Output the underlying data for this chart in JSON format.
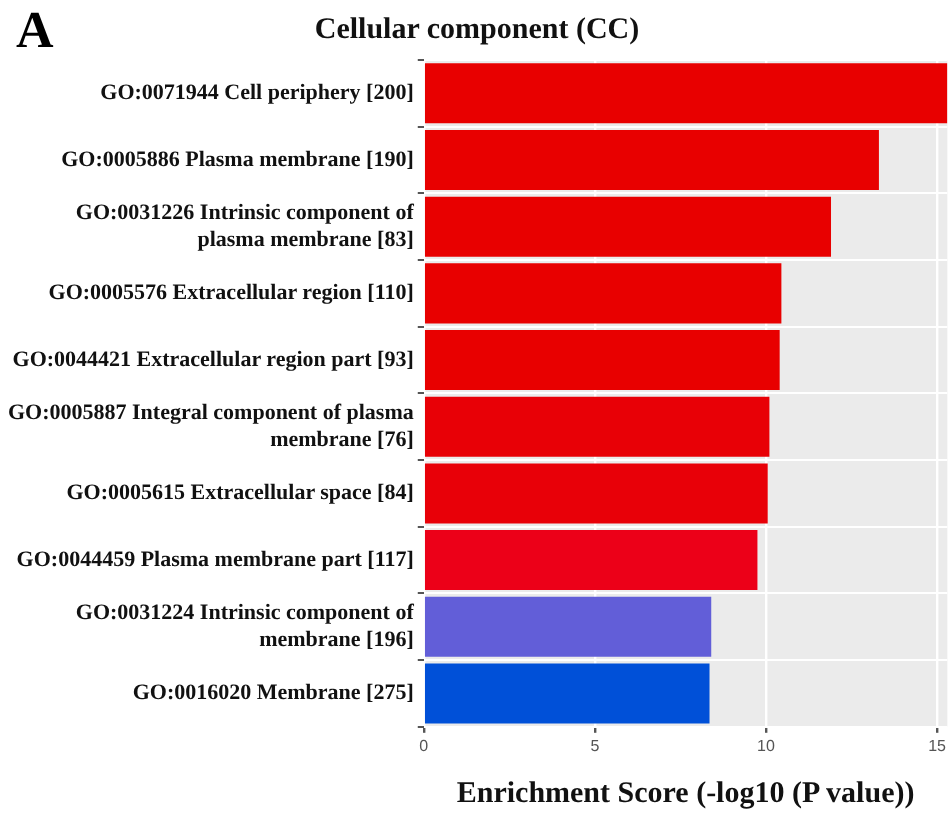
{
  "chart_data": {
    "type": "bar",
    "orientation": "horizontal",
    "title": "Cellular component (CC)",
    "xlabel": "Enrichment Score (-log10 (P value))",
    "annotations": [
      "A"
    ],
    "categories": [
      "GO:0071944 Cell periphery [200]",
      "GO:0005886 Plasma membrane [190]",
      "GO:0031226 Intrinsic component of plasma membrane [83]",
      "GO:0005576 Extracellular region [110]",
      "GO:0044421 Extracellular region part [93]",
      "GO:0005887 Integral component of plasma membrane [76]",
      "GO:0005615 Extracellular space [84]",
      "GO:0044459 Plasma membrane part [117]",
      "GO:0031224 Intrinsic component of membrane [196]",
      "GO:0016020 Membrane [275]"
    ],
    "values": [
      15.3,
      13.3,
      11.9,
      10.45,
      10.4,
      10.1,
      10.05,
      9.75,
      8.4,
      8.35
    ],
    "colors": [
      "#e80000",
      "#e80000",
      "#e80000",
      "#e80000",
      "#e80000",
      "#e80006",
      "#e80008",
      "#ec0018",
      "#625ed8",
      "#0050d8"
    ],
    "xlim": [
      0,
      15.3
    ],
    "xticks": [
      0,
      5,
      10,
      15
    ],
    "grid": true,
    "legend": false
  }
}
